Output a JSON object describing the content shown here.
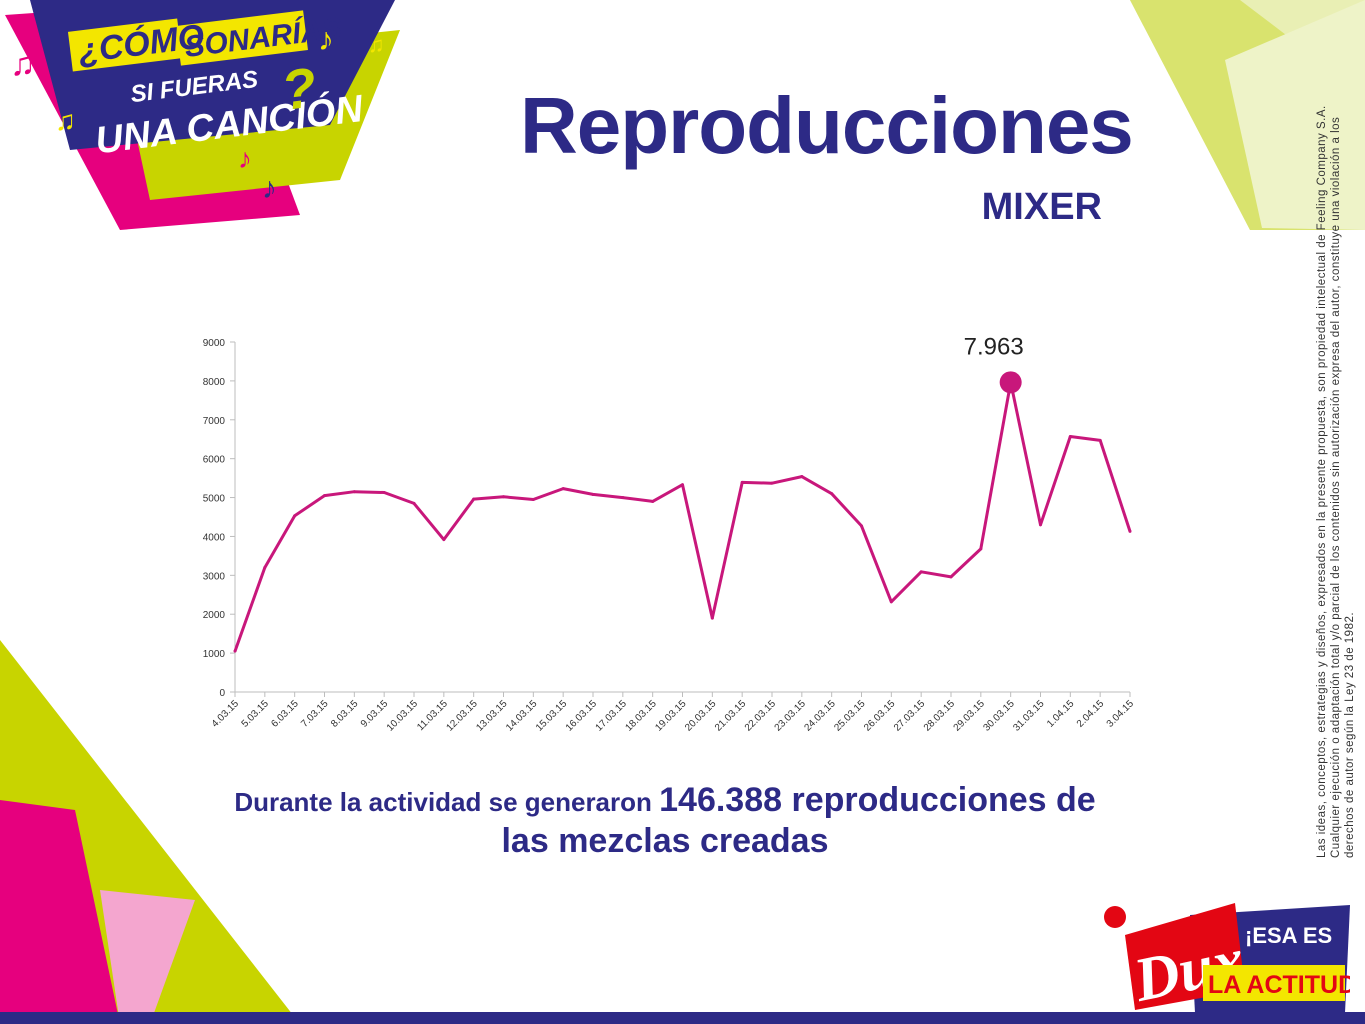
{
  "header": {
    "title": "Reproducciones",
    "subtitle": "MIXER"
  },
  "campaign_logo": {
    "line1_a": "¿CÓMO",
    "line1_b": "SONARÍAS",
    "line2": "SI FUERAS",
    "line3": "UNA CANCIÓN",
    "qmark": "?"
  },
  "chart_data": {
    "type": "line",
    "title": "",
    "xlabel": "",
    "ylabel": "",
    "ylim": [
      0,
      9000
    ],
    "yticks": [
      "0",
      "1000",
      "2000",
      "3000",
      "4000",
      "5000",
      "6000",
      "7000",
      "8000",
      "9000"
    ],
    "grid": false,
    "categories": [
      "4.03.15",
      "5.03.15",
      "6.03.15",
      "7.03.15",
      "8.03.15",
      "9.03.15",
      "10.03.15",
      "11.03.15",
      "12.03.15",
      "13.03.15",
      "14.03.15",
      "15.03.15",
      "16.03.15",
      "17.03.15",
      "18.03.15",
      "19.03.15",
      "20.03.15",
      "21.03.15",
      "22.03.15",
      "23.03.15",
      "24.03.15",
      "25.03.15",
      "26.03.15",
      "27.03.15",
      "28.03.15",
      "29.03.15",
      "30.03.15",
      "31.03.15",
      "1.04.15",
      "2.04.15",
      "3.04.15"
    ],
    "values": [
      1050,
      3200,
      4530,
      5050,
      5150,
      5130,
      4850,
      3920,
      4960,
      5020,
      4950,
      5230,
      5080,
      5000,
      4900,
      5330,
      1900,
      5390,
      5370,
      5540,
      5100,
      4270,
      2320,
      3090,
      2960,
      3680,
      7963,
      4300,
      6570,
      6470,
      4130
    ],
    "highlight": {
      "index": 26,
      "label": "7.963"
    },
    "line_color": "#c8177b"
  },
  "summary": {
    "part1": "Durante la actividad se generaron ",
    "number": "146.388",
    "part2": " reproducciones de",
    "part3": "las  mezclas creadas"
  },
  "legal": {
    "text": "Las ideas, conceptos, estrategias y diseños, expresados en la presente propuesta, son propiedad intelectual de Feeling Company S.A. Cualquier ejecución o adaptación total y/o parcial de los contenidos sin autorización expresa del autor, constituye una violación a los derechos de autor según la Ley 23 de 1982."
  },
  "brand": {
    "name": "Dux",
    "slogan_line1": "¡ESA ES",
    "slogan_line2": "LA ACTITUD!"
  },
  "colors": {
    "navy": "#2d2a86",
    "magenta": "#e6007e",
    "lime": "#c8d400",
    "pale_lime": "#e9efb4",
    "pink": "#f4a6cf",
    "yellow": "#f3e600",
    "red": "#e30613"
  }
}
